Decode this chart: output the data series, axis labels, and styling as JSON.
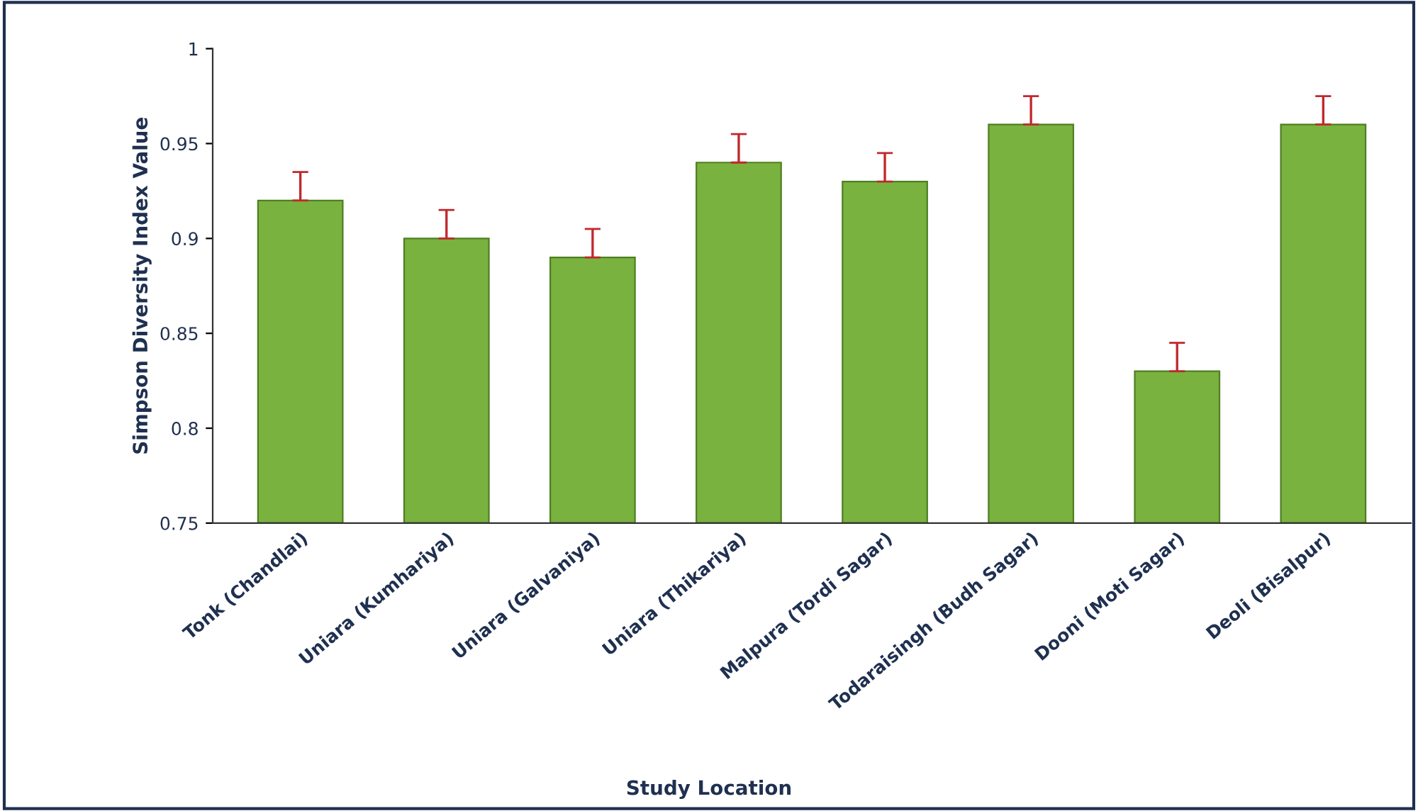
{
  "chart_data": {
    "type": "bar",
    "xlabel": "Study Location",
    "ylabel": "Simpson Diversity Index Value",
    "categories": [
      "Tonk (Chandlai)",
      "Uniara (Kumhariya)",
      "Uniara (Galvaniya)",
      "Uniara (Thikariya)",
      "Malpura (Tordi Sagar)",
      "Todaraisingh (Budh Sagar)",
      "Dooni (Moti Sagar)",
      "Deoli (Bisalpur)"
    ],
    "values": [
      0.92,
      0.9,
      0.89,
      0.94,
      0.93,
      0.96,
      0.83,
      0.96
    ],
    "errors": [
      [
        0.92,
        0.935
      ],
      [
        0.9,
        0.915
      ],
      [
        0.89,
        0.905
      ],
      [
        0.94,
        0.955
      ],
      [
        0.93,
        0.945
      ],
      [
        0.96,
        0.975
      ],
      [
        0.83,
        0.845
      ],
      [
        0.96,
        0.975
      ]
    ],
    "color": "#79b23f",
    "ylim": [
      0.75,
      1
    ],
    "yticks": [
      0.75,
      0.8,
      0.85,
      0.9,
      0.95,
      1
    ],
    "grid": false
  }
}
